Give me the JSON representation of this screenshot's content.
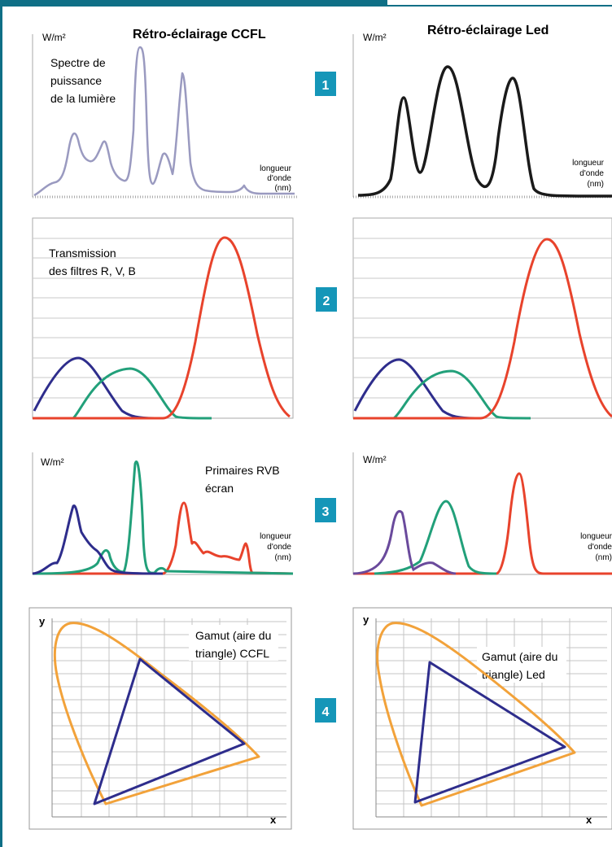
{
  "panels": {
    "ccfl_title": "Rétro-éclairage CCFL",
    "led_title": "Rétro-éclairage Led",
    "unit_wm2": "W/m²",
    "wavelength_label": [
      "longueur",
      "d'onde",
      "(nm)"
    ],
    "spectre_label": [
      "Spectre de",
      "puissance",
      "de la lumière"
    ],
    "transmission_label": [
      "Transmission",
      "des filtres R, V, B"
    ],
    "primaires_label": [
      "Primaires RVB",
      "écran"
    ],
    "gamut_ccfl_label": [
      "Gamut (aire du",
      "triangle) CCFL"
    ],
    "gamut_led_label": [
      "Gamut (aire du",
      "triangle) Led"
    ],
    "axis_y": "y",
    "axis_x": "x",
    "row_numbers": [
      "1",
      "2",
      "3",
      "4"
    ]
  },
  "colors": {
    "border": "#0f6f86",
    "badge": "#1596b8",
    "ccfl_spectrum": "#9a9ac0",
    "led_spectrum": "#1a1a1a",
    "blue": "#2e2d8c",
    "green": "#22a07a",
    "red": "#e8432c",
    "gamut_locus": "#f2a23a",
    "grid": "#b9b9b9"
  },
  "chart_data": [
    {
      "type": "line",
      "title": "Rétro-éclairage CCFL",
      "ylabel": "W/m²",
      "xlabel": "longueur d'onde (nm)",
      "annotation": "Spectre de puissance de la lumière",
      "series": [
        {
          "values": [
            0.02,
            0.05,
            0.08,
            0.1,
            0.14,
            0.25,
            0.45,
            0.5,
            0.4,
            0.3,
            0.3,
            0.28,
            0.4,
            0.45,
            0.3,
            0.22,
            0.2,
            0.25,
            0.3,
            1.0,
            0.9,
            0.2,
            0.1,
            0.35,
            0.4,
            0.3,
            0.85,
            0.65,
            0.1,
            0.05,
            0.04,
            0.03,
            0.03,
            0.03,
            0.02,
            0.1,
            0.03,
            0.02
          ]
        }
      ]
    },
    {
      "type": "line",
      "title": "Rétro-éclairage Led",
      "ylabel": "W/m²",
      "xlabel": "longueur d'onde (nm)",
      "series": [
        {
          "values": [
            0.0,
            0.0,
            0.02,
            0.2,
            0.7,
            0.76,
            0.4,
            0.3,
            0.6,
            0.9,
            0.95,
            0.85,
            0.45,
            0.1,
            0.05,
            0.3,
            0.72,
            0.78,
            0.5,
            0.1,
            0.0,
            0.0,
            0.0,
            0.0,
            0.0,
            0.0
          ]
        }
      ]
    },
    {
      "type": "line",
      "annotation": "Transmission des filtres R, V, B",
      "ylim": [
        0,
        1
      ],
      "series": [
        {
          "values": [
            0.05,
            0.3,
            0.05,
            0.0,
            0.0,
            0.0,
            0.0
          ]
        },
        {
          "values": [
            0.0,
            0.02,
            0.25,
            0.03,
            0.0,
            0.0,
            0.0
          ]
        },
        {
          "values": [
            0.0,
            0.0,
            0.0,
            0.1,
            0.9,
            0.25,
            0.0
          ]
        }
      ]
    },
    {
      "type": "line",
      "ylim": [
        0,
        1
      ],
      "series": [
        {
          "values": [
            0.05,
            0.3,
            0.05,
            0.0,
            0.0,
            0.0,
            0.0
          ]
        },
        {
          "values": [
            0.0,
            0.02,
            0.25,
            0.03,
            0.0,
            0.0,
            0.0
          ]
        },
        {
          "values": [
            0.0,
            0.0,
            0.0,
            0.1,
            0.9,
            0.25,
            0.0
          ]
        }
      ]
    },
    {
      "type": "line",
      "ylabel": "W/m²",
      "annotation": "Primaires RVB écran",
      "xlabel": "longueur d'onde (nm)"
    },
    {
      "type": "line",
      "ylabel": "W/m²",
      "xlabel": "longueur d'onde (nm)"
    },
    {
      "type": "scatter",
      "annotation": "Gamut (aire du triangle) CCFL"
    },
    {
      "type": "scatter",
      "annotation": "Gamut (aire du triangle) Led"
    }
  ]
}
